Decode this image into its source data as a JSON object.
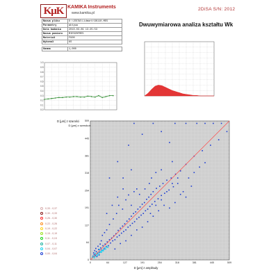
{
  "header": {
    "logo_text": "KμK",
    "brand": "KAMIKA Instruments",
    "url": "www.kamika.pl",
    "serial": "2DiSA S/N: 2012",
    "title": "Dwuwymiarowa analiza kształtu Wk"
  },
  "info_rows": [
    {
      "key": "Nazwa pliku",
      "value": "D:\\2DISA\\Lidmark\\GK110.MES"
    },
    {
      "key": "Parametry",
      "value": "aktywa"
    },
    {
      "key": "Data badania",
      "value": "2010-03-09 13:25:53"
    },
    {
      "key": "Nazwa pomiaru",
      "value": "MIESZ0FRE5"
    },
    {
      "key": "Materiał",
      "value": "FG00"
    },
    {
      "key": "Wykonał",
      "value": "KS"
    },
    {
      "key": "Gamma",
      "value": "1,000"
    }
  ],
  "legend": [
    {
      "label": "0,33 - 0,37",
      "color": "#d9b0b0"
    },
    {
      "label": "0,30 - 0,33",
      "color": "#8b1a1a"
    },
    {
      "label": "0,26 - 0,30",
      "color": "#ff2a2a"
    },
    {
      "label": "0,22 - 0,26",
      "color": "#ff8c1a"
    },
    {
      "label": "0,19 - 0,22",
      "color": "#ffd21a"
    },
    {
      "label": "0,15 - 0,19",
      "color": "#9be01a"
    },
    {
      "label": "0,11 - 0,15",
      "color": "#1ad21a"
    },
    {
      "label": "0,07 - 0,11",
      "color": "#1ab0a0"
    },
    {
      "label": "0,04 - 0,07",
      "color": "#1ad2f0"
    },
    {
      "label": "0,00 - 0,04",
      "color": "#1a3ad2"
    }
  ],
  "chart_data": [
    {
      "type": "line",
      "id": "small-left",
      "xlabel": "D [μm] z szerokości",
      "ylabel": "",
      "y_ticks": [
        "1.0",
        "0.9",
        "0.8",
        "0.7",
        "0.6",
        "0.5",
        "0.4",
        "0.3",
        "0.2",
        "0.1",
        "0.0"
      ],
      "ylim": [
        0,
        1
      ],
      "color": "#2e8b2e",
      "x": [
        0,
        0.05,
        0.1,
        0.15,
        0.2,
        0.25,
        0.3,
        0.35,
        0.4,
        0.45,
        0.5,
        0.55,
        0.6,
        0.65,
        0.7,
        0.75,
        0.8,
        0.85,
        0.9,
        0.95
      ],
      "values": [
        0.22,
        0.23,
        0.24,
        0.25,
        0.26,
        0.26,
        0.27,
        0.27,
        0.28,
        0.28,
        0.27,
        0.27,
        0.29,
        0.28,
        0.27,
        0.3,
        0.26,
        0.28,
        0.3,
        0.3
      ]
    },
    {
      "type": "area",
      "id": "small-right",
      "title": "",
      "xlabel": "",
      "ylabel": "",
      "ylim": [
        0,
        1
      ],
      "color": "#e02020",
      "x": [
        0,
        0.05,
        0.1,
        0.15,
        0.2,
        0.25,
        0.3,
        0.35,
        0.4,
        0.45,
        0.5,
        0.55,
        0.6,
        0.65,
        0.7,
        0.75,
        0.8,
        0.85,
        0.9,
        0.95,
        1.0
      ],
      "values": [
        0.0,
        0.05,
        0.12,
        0.18,
        0.2,
        0.19,
        0.16,
        0.13,
        0.1,
        0.08,
        0.06,
        0.04,
        0.03,
        0.02,
        0.01,
        0.01,
        0.0,
        0.0,
        0.0,
        0.0,
        0.0
      ]
    },
    {
      "type": "scatter",
      "id": "main-scatter",
      "xlabel": "D [μm] z amplitudy",
      "ylabel": "D [μm] z szarości",
      "x_ticks": [
        0,
        64,
        127,
        191,
        254,
        318,
        381,
        445,
        509
      ],
      "y_ticks": [
        0,
        64,
        127,
        191,
        254,
        318,
        381,
        445,
        509
      ],
      "xlim": [
        0,
        509
      ],
      "ylim": [
        0,
        509
      ],
      "grid": true,
      "reference_line": {
        "from": [
          0,
          0
        ],
        "to": [
          509,
          509
        ],
        "color": "#ff4a4a"
      },
      "point_color": "#1a3ad2",
      "dense_color": "#1ad2f0",
      "points": [
        [
          10,
          14
        ],
        [
          14,
          20
        ],
        [
          18,
          16
        ],
        [
          22,
          30
        ],
        [
          26,
          24
        ],
        [
          30,
          38
        ],
        [
          34,
          28
        ],
        [
          38,
          44
        ],
        [
          42,
          36
        ],
        [
          46,
          52
        ],
        [
          50,
          40
        ],
        [
          54,
          58
        ],
        [
          58,
          48
        ],
        [
          62,
          66
        ],
        [
          66,
          52
        ],
        [
          70,
          74
        ],
        [
          74,
          62
        ],
        [
          78,
          80
        ],
        [
          82,
          70
        ],
        [
          86,
          88
        ],
        [
          90,
          74
        ],
        [
          94,
          96
        ],
        [
          98,
          84
        ],
        [
          102,
          108
        ],
        [
          106,
          90
        ],
        [
          110,
          116
        ],
        [
          114,
          98
        ],
        [
          118,
          124
        ],
        [
          122,
          104
        ],
        [
          126,
          132
        ],
        [
          130,
          110
        ],
        [
          134,
          142
        ],
        [
          138,
          120
        ],
        [
          142,
          150
        ],
        [
          146,
          126
        ],
        [
          150,
          160
        ],
        [
          154,
          134
        ],
        [
          158,
          170
        ],
        [
          162,
          140
        ],
        [
          166,
          176
        ],
        [
          170,
          150
        ],
        [
          174,
          186
        ],
        [
          178,
          156
        ],
        [
          182,
          194
        ],
        [
          186,
          164
        ],
        [
          190,
          204
        ],
        [
          194,
          170
        ],
        [
          198,
          210
        ],
        [
          202,
          180
        ],
        [
          206,
          222
        ],
        [
          210,
          186
        ],
        [
          214,
          230
        ],
        [
          218,
          196
        ],
        [
          222,
          240
        ],
        [
          226,
          204
        ],
        [
          230,
          250
        ],
        [
          236,
          214
        ],
        [
          242,
          262
        ],
        [
          248,
          224
        ],
        [
          254,
          270
        ],
        [
          260,
          236
        ],
        [
          266,
          280
        ],
        [
          272,
          244
        ],
        [
          280,
          292
        ],
        [
          288,
          256
        ],
        [
          296,
          300
        ],
        [
          304,
          268
        ],
        [
          312,
          314
        ],
        [
          320,
          280
        ],
        [
          330,
          326
        ],
        [
          60,
          110
        ],
        [
          70,
          130
        ],
        [
          84,
          150
        ],
        [
          96,
          170
        ],
        [
          104,
          200
        ],
        [
          118,
          186
        ],
        [
          130,
          220
        ],
        [
          140,
          238
        ],
        [
          150,
          200
        ],
        [
          160,
          250
        ],
        [
          90,
          40
        ],
        [
          110,
          60
        ],
        [
          130,
          70
        ],
        [
          150,
          90
        ],
        [
          170,
          110
        ],
        [
          190,
          120
        ],
        [
          210,
          140
        ],
        [
          230,
          160
        ],
        [
          250,
          180
        ],
        [
          270,
          200
        ],
        [
          40,
          70
        ],
        [
          44,
          90
        ],
        [
          52,
          100
        ],
        [
          36,
          58
        ],
        [
          28,
          50
        ],
        [
          20,
          42
        ],
        [
          16,
          34
        ],
        [
          12,
          26
        ],
        [
          24,
          12
        ],
        [
          32,
          18
        ],
        [
          200,
          260
        ],
        [
          216,
          280
        ],
        [
          224,
          300
        ],
        [
          240,
          320
        ],
        [
          260,
          330
        ],
        [
          180,
          240
        ],
        [
          170,
          260
        ],
        [
          300,
          360
        ],
        [
          150,
          330
        ],
        [
          120,
          300
        ],
        [
          340,
          250
        ],
        [
          360,
          300
        ],
        [
          380,
          320
        ],
        [
          400,
          340
        ],
        [
          420,
          356
        ],
        [
          370,
          270
        ],
        [
          350,
          230
        ],
        [
          310,
          210
        ],
        [
          290,
          190
        ],
        [
          330,
          240
        ],
        [
          100,
          360
        ],
        [
          70,
          300
        ],
        [
          140,
          420
        ],
        [
          190,
          460
        ],
        [
          260,
          470
        ],
        [
          290,
          430
        ],
        [
          120,
          260
        ],
        [
          100,
          230
        ],
        [
          80,
          200
        ],
        [
          60,
          170
        ],
        [
          160,
          500
        ],
        [
          230,
          500
        ],
        [
          310,
          500
        ],
        [
          350,
          500
        ],
        [
          390,
          500
        ],
        [
          420,
          500
        ],
        [
          450,
          500
        ],
        [
          480,
          500
        ],
        [
          500,
          470
        ],
        [
          470,
          440
        ],
        [
          440,
          420
        ],
        [
          410,
          400
        ],
        [
          380,
          380
        ],
        [
          350,
          350
        ],
        [
          320,
          300
        ],
        [
          300,
          280
        ],
        [
          280,
          250
        ],
        [
          260,
          220
        ],
        [
          240,
          200
        ],
        [
          220,
          170
        ]
      ],
      "dense_points": [
        [
          8,
          10
        ],
        [
          12,
          14
        ],
        [
          16,
          12
        ],
        [
          20,
          20
        ],
        [
          24,
          16
        ],
        [
          28,
          26
        ],
        [
          32,
          22
        ],
        [
          36,
          30
        ],
        [
          40,
          28
        ],
        [
          44,
          36
        ],
        [
          48,
          34
        ],
        [
          52,
          44
        ],
        [
          56,
          40
        ],
        [
          60,
          50
        ],
        [
          64,
          46
        ],
        [
          14,
          8
        ],
        [
          18,
          24
        ],
        [
          26,
          18
        ],
        [
          34,
          38
        ],
        [
          42,
          32
        ]
      ]
    }
  ]
}
